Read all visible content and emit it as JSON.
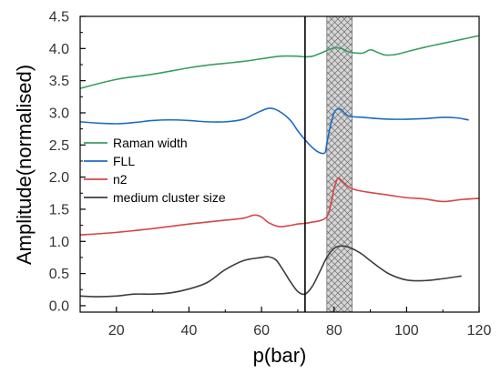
{
  "chart_data": {
    "type": "line",
    "title": "",
    "xlabel": "p(bar)",
    "ylabel": "Amplitude(normalised)",
    "xlim": [
      10,
      120
    ],
    "ylim": [
      -0.1,
      4.5
    ],
    "xticks": [
      20,
      40,
      60,
      80,
      100,
      120
    ],
    "yticks": [
      0.0,
      0.5,
      1.0,
      1.5,
      2.0,
      2.5,
      3.0,
      3.5,
      4.0,
      4.5
    ],
    "grid": false,
    "legend_position": "left-middle",
    "vertical_line": {
      "x": 72,
      "color": "#000000"
    },
    "shaded_band": {
      "x_from": 78,
      "x_to": 85,
      "pattern": "crosshatch",
      "fill": "#d0d0d0"
    },
    "series": [
      {
        "name": "Raman width",
        "color": "#3a9e5c",
        "x": [
          10,
          20,
          30,
          40,
          45,
          50,
          55,
          60,
          65,
          70,
          72,
          74,
          76,
          78,
          80,
          82,
          84,
          86,
          88,
          90,
          92,
          94,
          96,
          98,
          100,
          105,
          110,
          115,
          120
        ],
        "y": [
          3.38,
          3.52,
          3.6,
          3.7,
          3.74,
          3.77,
          3.8,
          3.84,
          3.88,
          3.88,
          3.87,
          3.88,
          3.92,
          3.97,
          4.01,
          4.0,
          3.95,
          3.93,
          3.93,
          3.98,
          3.94,
          3.9,
          3.9,
          3.92,
          3.95,
          4.02,
          4.08,
          4.14,
          4.2
        ]
      },
      {
        "name": "FLL",
        "color": "#1e6bc4",
        "x": [
          10,
          15,
          20,
          25,
          30,
          35,
          40,
          45,
          50,
          55,
          58,
          62,
          65,
          68,
          70,
          72,
          74,
          76,
          77.5,
          78,
          79,
          80,
          81,
          82,
          84,
          88,
          92,
          96,
          100,
          105,
          110,
          114,
          117
        ],
        "y": [
          2.86,
          2.84,
          2.83,
          2.85,
          2.88,
          2.89,
          2.88,
          2.86,
          2.86,
          2.9,
          2.98,
          3.07,
          3.02,
          2.88,
          2.72,
          2.58,
          2.46,
          2.38,
          2.38,
          2.52,
          2.8,
          3.0,
          3.06,
          3.05,
          2.95,
          2.93,
          2.91,
          2.9,
          2.9,
          2.91,
          2.93,
          2.92,
          2.89
        ]
      },
      {
        "name": "n2",
        "color": "#d94448",
        "x": [
          10,
          20,
          30,
          40,
          45,
          50,
          55,
          58,
          60,
          62,
          65,
          68,
          70,
          72,
          74,
          76,
          78,
          79,
          80,
          81,
          82,
          84,
          86,
          90,
          95,
          100,
          105,
          110,
          115,
          120
        ],
        "y": [
          1.1,
          1.14,
          1.2,
          1.27,
          1.3,
          1.33,
          1.36,
          1.41,
          1.38,
          1.29,
          1.23,
          1.25,
          1.27,
          1.28,
          1.3,
          1.32,
          1.38,
          1.55,
          1.82,
          1.98,
          1.95,
          1.85,
          1.8,
          1.76,
          1.72,
          1.68,
          1.66,
          1.62,
          1.65,
          1.67
        ]
      },
      {
        "name": "medium cluster size",
        "color": "#3d3d3d",
        "x": [
          10,
          15,
          20,
          25,
          30,
          35,
          40,
          45,
          50,
          55,
          60,
          62,
          64,
          66,
          68,
          70,
          72,
          74,
          76,
          78,
          80,
          82,
          84,
          86,
          88,
          90,
          95,
          100,
          105,
          110,
          115
        ],
        "y": [
          0.15,
          0.14,
          0.15,
          0.18,
          0.18,
          0.2,
          0.26,
          0.36,
          0.56,
          0.7,
          0.75,
          0.76,
          0.71,
          0.55,
          0.37,
          0.22,
          0.18,
          0.3,
          0.52,
          0.75,
          0.89,
          0.93,
          0.91,
          0.86,
          0.79,
          0.7,
          0.5,
          0.4,
          0.39,
          0.42,
          0.46
        ]
      }
    ]
  }
}
